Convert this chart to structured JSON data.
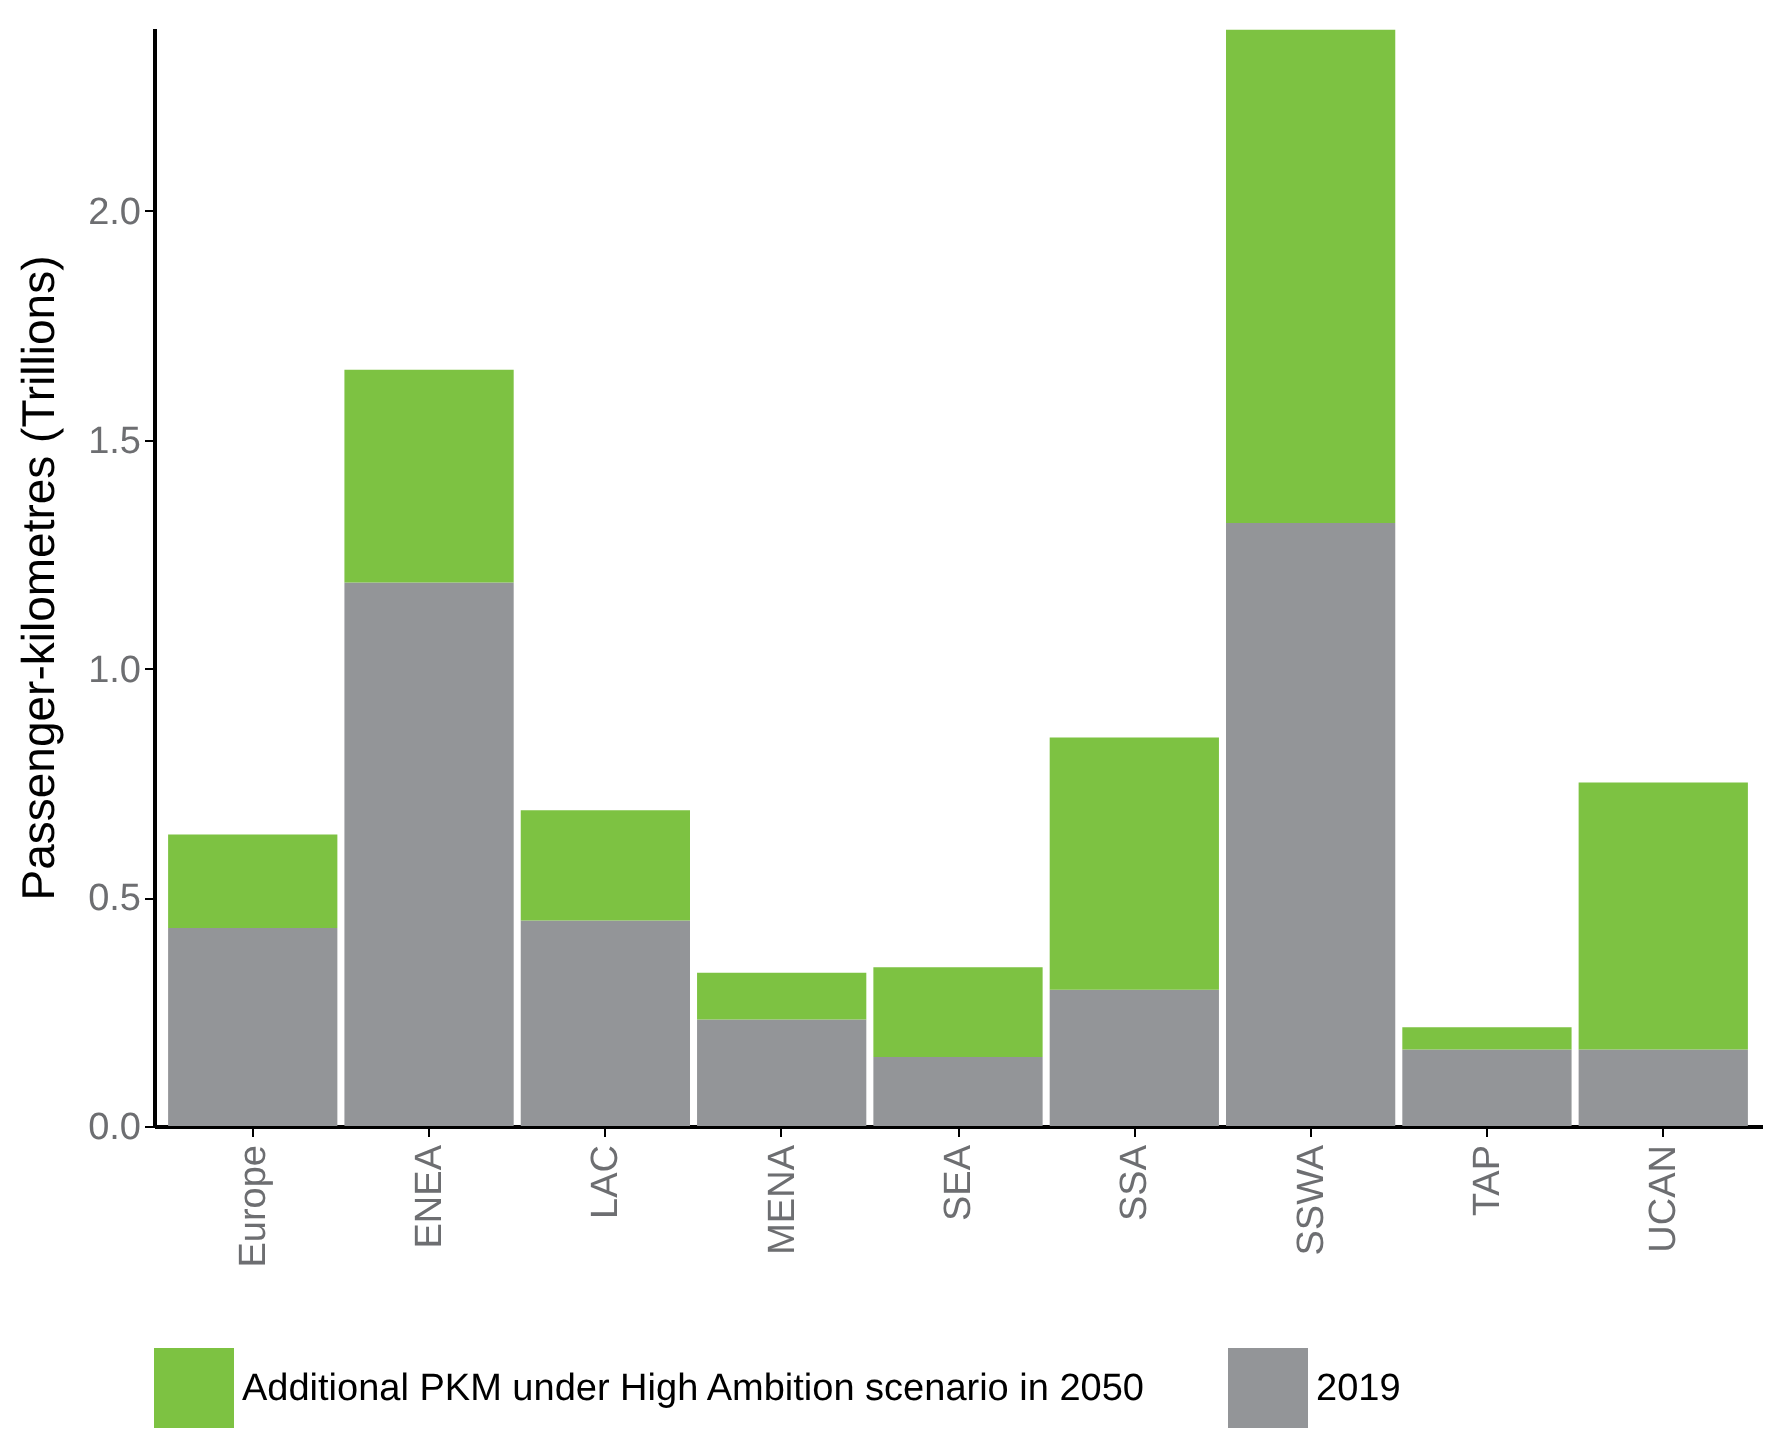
{
  "chart_data": {
    "type": "bar",
    "ylabel": "Passenger-kilometres (Trillions)",
    "categories": [
      "Europe",
      "ENEA",
      "LAC",
      "MENA",
      "SEA",
      "SSA",
      "SSWA",
      "TAP",
      "UCAN"
    ],
    "stacked": true,
    "series": [
      {
        "name": "2019",
        "color": "#939598",
        "values": [
          0.433,
          1.188,
          0.449,
          0.233,
          0.151,
          0.298,
          1.318,
          0.167,
          0.167
        ]
      },
      {
        "name": "Additional PKM under High Ambition scenario in 2050",
        "color": "#7dc242",
        "values": [
          0.204,
          0.465,
          0.241,
          0.102,
          0.196,
          0.551,
          1.078,
          0.049,
          0.584
        ]
      }
    ],
    "ylim": [
      0,
      2.4
    ],
    "yticks": [
      {
        "value": 0,
        "label": "0.0"
      },
      0.5,
      {
        "value": 1,
        "label": "1.0"
      },
      1.5,
      {
        "value": 2,
        "label": "2.0"
      }
    ],
    "grid": false,
    "legend": "bottom"
  }
}
